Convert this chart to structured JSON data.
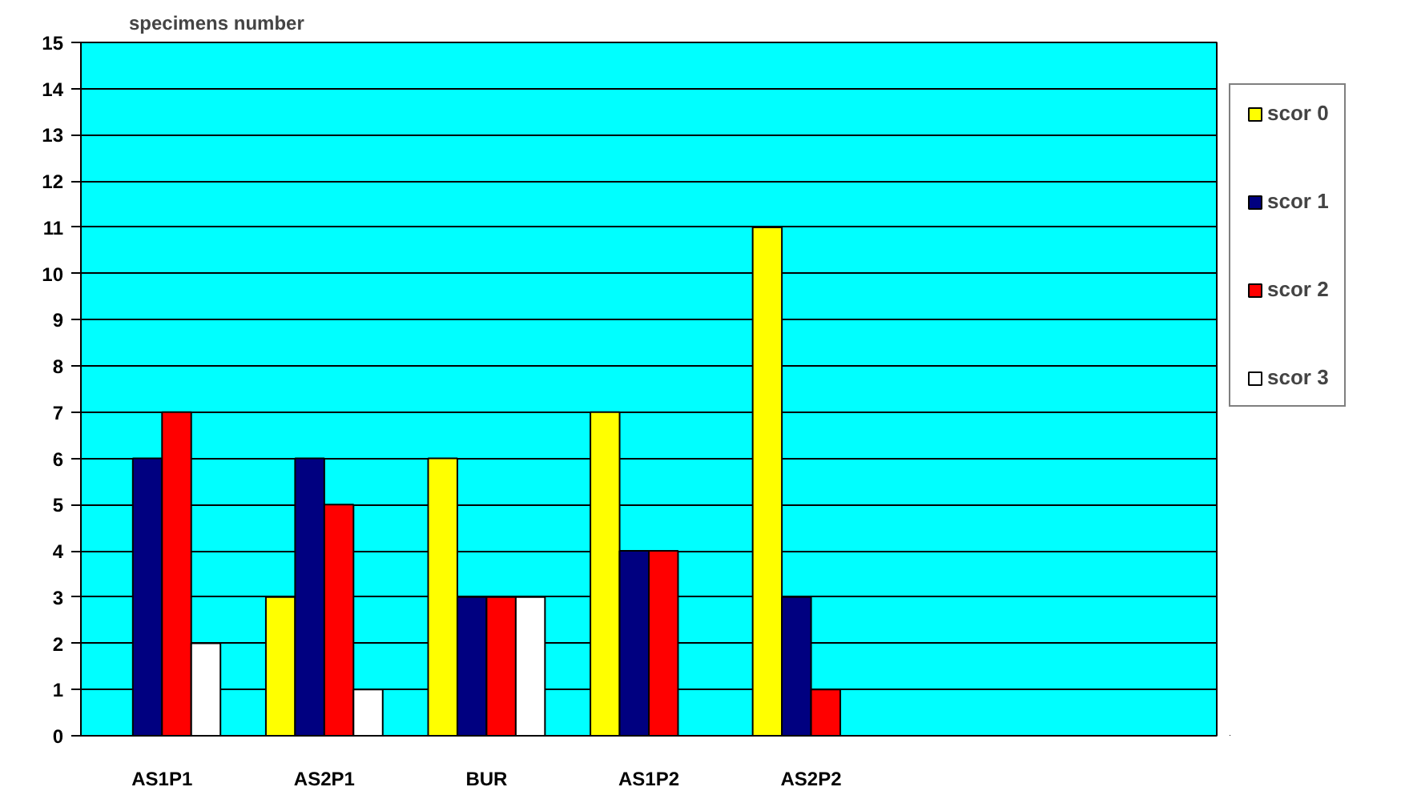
{
  "chart_data": {
    "type": "bar",
    "ylabel": "specimens number",
    "categories": [
      "AS1P1",
      "AS2P1",
      "BUR",
      "AS1P2",
      "AS2P2",
      null,
      null
    ],
    "series": [
      {
        "name": "scor 0",
        "color": "#ffff00",
        "values": [
          0,
          3,
          6,
          7,
          11,
          null,
          null
        ]
      },
      {
        "name": "scor 1",
        "color": "#000080",
        "values": [
          6,
          6,
          3,
          4,
          3,
          null,
          null
        ]
      },
      {
        "name": "scor 2",
        "color": "#ff0000",
        "values": [
          7,
          5,
          3,
          4,
          1,
          null,
          null
        ]
      },
      {
        "name": "scor 3",
        "color": "#ffffff",
        "values": [
          2,
          1,
          3,
          0,
          0,
          null,
          null
        ]
      }
    ],
    "ylim": [
      0,
      15
    ],
    "yticks": [
      0,
      1,
      2,
      3,
      4,
      5,
      6,
      7,
      8,
      9,
      10,
      11,
      12,
      13,
      14,
      15
    ],
    "grid": "y",
    "legend": "right"
  }
}
